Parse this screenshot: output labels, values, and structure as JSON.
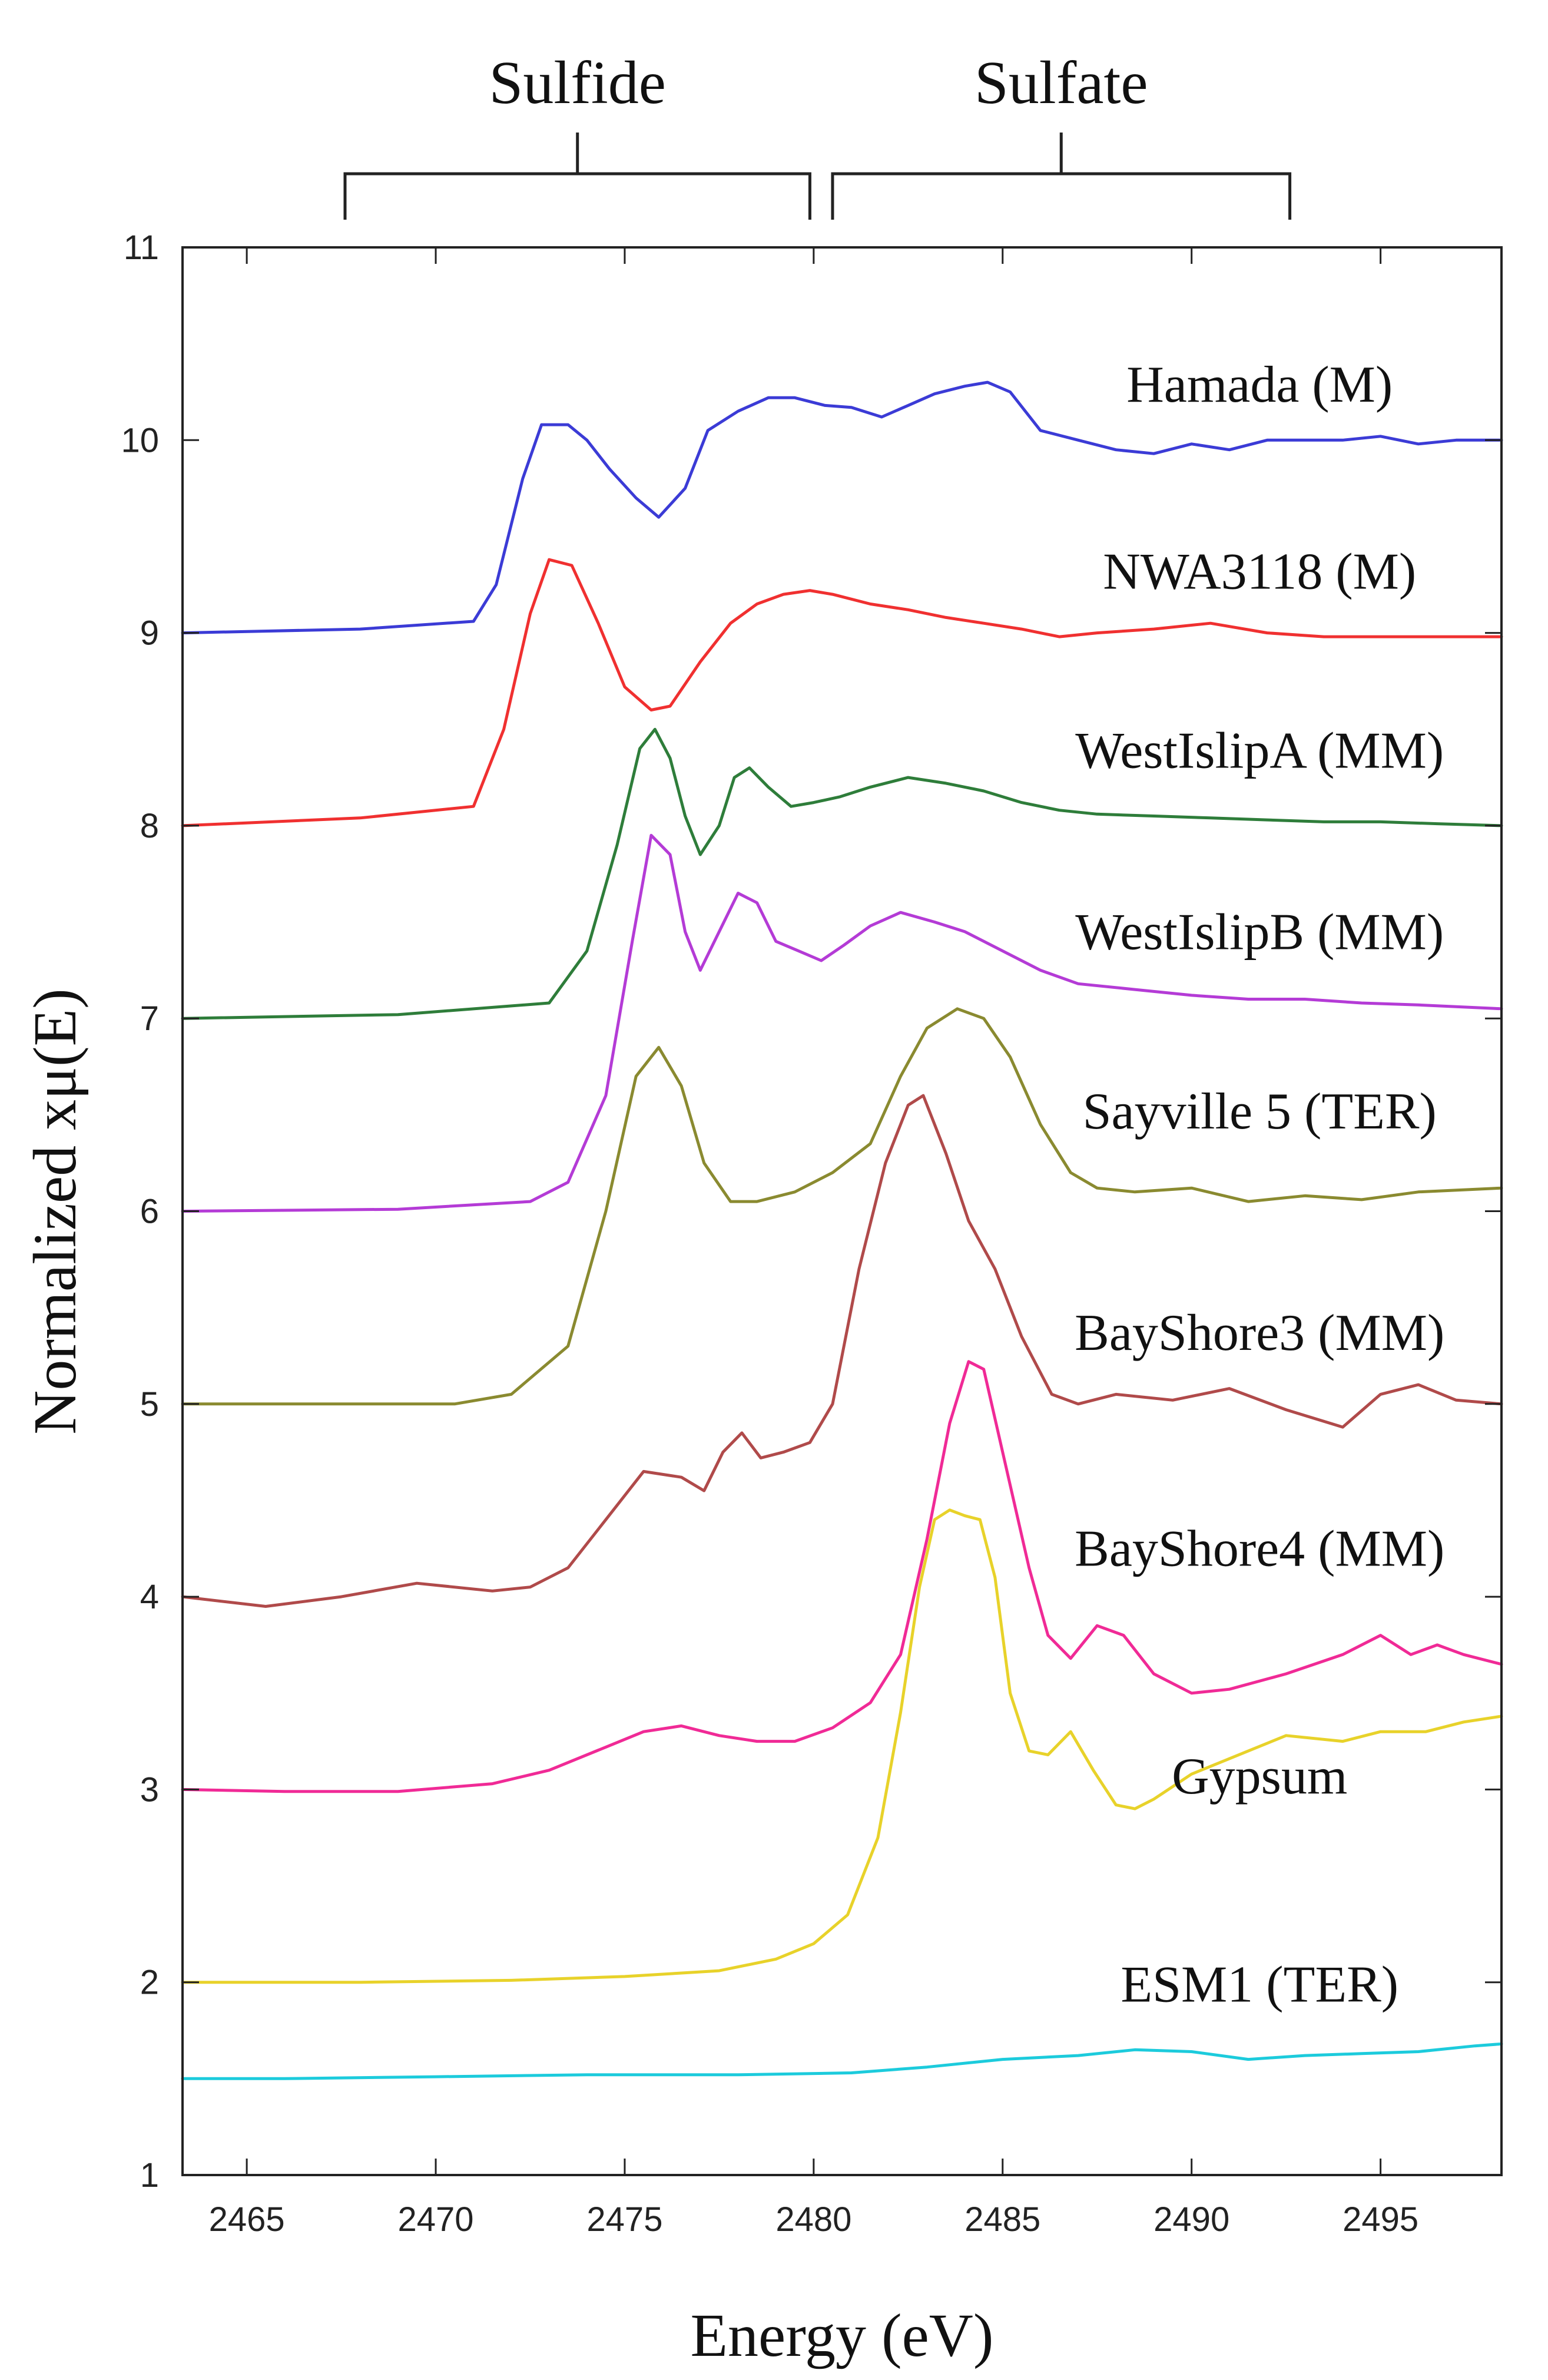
{
  "chart_data": {
    "type": "line",
    "title": "",
    "xlabel": "Energy (eV)",
    "ylabel": "Normalized xμ(E)",
    "xlim": [
      2463.3,
      2498.2
    ],
    "ylim": [
      1,
      11
    ],
    "xticks": [
      2465,
      2470,
      2475,
      2480,
      2485,
      2490,
      2495
    ],
    "yticks": [
      1,
      2,
      3,
      4,
      5,
      6,
      7,
      8,
      9,
      10,
      11
    ],
    "grid": false,
    "legend": "none",
    "brackets": [
      {
        "label": "Sulfide",
        "x0": 2467.6,
        "x1": 2479.9
      },
      {
        "label": "Sulfate",
        "x0": 2480.5,
        "x1": 2492.6
      }
    ],
    "series": [
      {
        "name": "Hamada (M)",
        "color": "#3b3bd6",
        "x": [
          2463.3,
          2468,
          2471,
          2471.6,
          2472.3,
          2472.8,
          2473.5,
          2474,
          2474.6,
          2475.3,
          2475.9,
          2476.6,
          2477.2,
          2478,
          2478.8,
          2479.5,
          2480.3,
          2481,
          2481.8,
          2482.5,
          2483.2,
          2484,
          2484.6,
          2485.2,
          2486,
          2487,
          2488,
          2489,
          2490,
          2491,
          2492,
          2493,
          2494,
          2495,
          2496,
          2497,
          2498.2
        ],
        "y": [
          9.0,
          9.02,
          9.06,
          9.25,
          9.8,
          10.08,
          10.08,
          10.0,
          9.85,
          9.7,
          9.6,
          9.75,
          10.05,
          10.15,
          10.22,
          10.22,
          10.18,
          10.17,
          10.12,
          10.18,
          10.24,
          10.28,
          10.3,
          10.25,
          10.05,
          10.0,
          9.95,
          9.93,
          9.98,
          9.95,
          10.0,
          10.0,
          10.0,
          10.02,
          9.98,
          10.0,
          10.0
        ]
      },
      {
        "name": "NWA3118 (M)",
        "color": "#f03030",
        "x": [
          2463.3,
          2468,
          2471,
          2471.8,
          2472.5,
          2473,
          2473.6,
          2474.3,
          2475,
          2475.7,
          2476.2,
          2477,
          2477.8,
          2478.5,
          2479.2,
          2479.9,
          2480.5,
          2481.5,
          2482.5,
          2483.5,
          2484.5,
          2485.5,
          2486.5,
          2487.5,
          2489,
          2490.5,
          2492,
          2493.5,
          2495,
          2496.5,
          2498.2
        ],
        "y": [
          8.0,
          8.04,
          8.1,
          8.5,
          9.1,
          9.38,
          9.35,
          9.05,
          8.72,
          8.6,
          8.62,
          8.85,
          9.05,
          9.15,
          9.2,
          9.22,
          9.2,
          9.15,
          9.12,
          9.08,
          9.05,
          9.02,
          8.98,
          9.0,
          9.02,
          9.05,
          9.0,
          8.98,
          8.98,
          8.98,
          8.98
        ]
      },
      {
        "name": "WestIslipA (MM)",
        "color": "#2e7d3a",
        "x": [
          2463.3,
          2469,
          2473,
          2474,
          2474.8,
          2475.4,
          2475.8,
          2476.2,
          2476.6,
          2477,
          2477.5,
          2477.9,
          2478.3,
          2478.8,
          2479.4,
          2480,
          2480.7,
          2481.5,
          2482.5,
          2483.5,
          2484.5,
          2485.5,
          2486.5,
          2487.5,
          2489,
          2490.5,
          2492,
          2493.5,
          2495,
          2496.5,
          2498.2
        ],
        "y": [
          7.0,
          7.02,
          7.08,
          7.35,
          7.9,
          8.4,
          8.5,
          8.35,
          8.05,
          7.85,
          8.0,
          8.25,
          8.3,
          8.2,
          8.1,
          8.12,
          8.15,
          8.2,
          8.25,
          8.22,
          8.18,
          8.12,
          8.08,
          8.06,
          8.05,
          8.04,
          8.03,
          8.02,
          8.02,
          8.01,
          8.0
        ]
      },
      {
        "name": "WestIslipB (MM)",
        "color": "#b43bd6",
        "x": [
          2463.3,
          2469,
          2472.5,
          2473.5,
          2474.5,
          2475.2,
          2475.7,
          2476.2,
          2476.6,
          2477,
          2477.5,
          2478,
          2478.5,
          2479,
          2479.6,
          2480.2,
          2480.8,
          2481.5,
          2482.3,
          2483.2,
          2484,
          2485,
          2486,
          2487,
          2488.5,
          2490,
          2491.5,
          2493,
          2494.5,
          2496,
          2498.2
        ],
        "y": [
          6.0,
          6.01,
          6.05,
          6.15,
          6.6,
          7.4,
          7.95,
          7.85,
          7.45,
          7.25,
          7.45,
          7.65,
          7.6,
          7.4,
          7.35,
          7.3,
          7.38,
          7.48,
          7.55,
          7.5,
          7.45,
          7.35,
          7.25,
          7.18,
          7.15,
          7.12,
          7.1,
          7.1,
          7.08,
          7.07,
          7.05
        ]
      },
      {
        "name": "Sayville 5 (TER)",
        "color": "#8a8a30",
        "x": [
          2463.3,
          2468,
          2470.5,
          2472,
          2473.5,
          2474.5,
          2475.3,
          2475.9,
          2476.5,
          2477.1,
          2477.8,
          2478.5,
          2479.5,
          2480.5,
          2481.5,
          2482.3,
          2483,
          2483.8,
          2484.5,
          2485.2,
          2486,
          2486.8,
          2487.5,
          2488.5,
          2490,
          2491.5,
          2493,
          2494.5,
          2496,
          2498.2
        ],
        "y": [
          5.0,
          5.0,
          5.0,
          5.05,
          5.3,
          6.0,
          6.7,
          6.85,
          6.65,
          6.25,
          6.05,
          6.05,
          6.1,
          6.2,
          6.35,
          6.7,
          6.95,
          7.05,
          7.0,
          6.8,
          6.45,
          6.2,
          6.12,
          6.1,
          6.12,
          6.05,
          6.08,
          6.06,
          6.1,
          6.12
        ]
      },
      {
        "name": "BayShore3 (MM)",
        "color": "#b04a4a",
        "x": [
          2463.3,
          2465.5,
          2467.5,
          2469.5,
          2471.5,
          2472.5,
          2473.5,
          2474.5,
          2475.5,
          2476.5,
          2477.1,
          2477.6,
          2478.1,
          2478.6,
          2479.2,
          2479.9,
          2480.5,
          2481.2,
          2481.9,
          2482.5,
          2482.9,
          2483.5,
          2484.1,
          2484.8,
          2485.5,
          2486.3,
          2487,
          2488,
          2489.5,
          2491,
          2492.5,
          2494,
          2495,
          2496,
          2497,
          2498.2
        ],
        "y": [
          4.0,
          3.95,
          4.0,
          4.07,
          4.03,
          4.05,
          4.15,
          4.4,
          4.65,
          4.62,
          4.55,
          4.75,
          4.85,
          4.72,
          4.75,
          4.8,
          5.0,
          5.7,
          6.25,
          6.55,
          6.6,
          6.3,
          5.95,
          5.7,
          5.35,
          5.05,
          5.0,
          5.05,
          5.02,
          5.08,
          4.97,
          4.88,
          5.05,
          5.1,
          5.02,
          5.0
        ]
      },
      {
        "name": "BayShore4 (MM)",
        "color": "#f02a96",
        "x": [
          2463.3,
          2466,
          2469,
          2471.5,
          2473,
          2474.5,
          2475.5,
          2476.5,
          2477.5,
          2478.5,
          2479.5,
          2480.5,
          2481.5,
          2482.3,
          2483,
          2483.6,
          2484.1,
          2484.5,
          2485,
          2485.7,
          2486.2,
          2486.8,
          2487.5,
          2488.2,
          2489,
          2490,
          2491,
          2492.5,
          2494,
          2495,
          2495.8,
          2496.5,
          2497.2,
          2498.2
        ],
        "y": [
          3.0,
          2.99,
          2.99,
          3.03,
          3.1,
          3.22,
          3.3,
          3.33,
          3.28,
          3.25,
          3.25,
          3.32,
          3.45,
          3.7,
          4.3,
          4.9,
          5.22,
          5.18,
          4.75,
          4.15,
          3.8,
          3.68,
          3.85,
          3.8,
          3.6,
          3.5,
          3.52,
          3.6,
          3.7,
          3.8,
          3.7,
          3.75,
          3.7,
          3.65
        ]
      },
      {
        "name": "Gypsum",
        "color": "#e8d22a",
        "x": [
          2463.3,
          2468,
          2472,
          2475,
          2477.5,
          2479,
          2480,
          2480.9,
          2481.7,
          2482.3,
          2482.8,
          2483.2,
          2483.6,
          2484,
          2484.4,
          2484.8,
          2485.2,
          2485.7,
          2486.2,
          2486.8,
          2487.4,
          2488,
          2488.5,
          2489,
          2490,
          2491.5,
          2492.5,
          2494,
          2495,
          2496.2,
          2497.2,
          2498.2
        ],
        "y": [
          2.0,
          2.0,
          2.01,
          2.03,
          2.06,
          2.12,
          2.2,
          2.35,
          2.75,
          3.4,
          4.05,
          4.4,
          4.45,
          4.42,
          4.4,
          4.1,
          3.5,
          3.2,
          3.18,
          3.3,
          3.1,
          2.92,
          2.9,
          2.95,
          3.08,
          3.2,
          3.28,
          3.25,
          3.3,
          3.3,
          3.35,
          3.38
        ]
      },
      {
        "name": "ESM1 (TER)",
        "color": "#1ccbdc",
        "x": [
          2463.3,
          2466,
          2470,
          2474,
          2478,
          2481,
          2483,
          2485,
          2487,
          2488.5,
          2490,
          2491.5,
          2493,
          2494.5,
          2496,
          2497.5,
          2498.2
        ],
        "y": [
          1.5,
          1.5,
          1.51,
          1.52,
          1.52,
          1.53,
          1.56,
          1.6,
          1.62,
          1.65,
          1.64,
          1.6,
          1.62,
          1.63,
          1.64,
          1.67,
          1.68
        ]
      }
    ],
    "annotations": [
      {
        "text": "Hamada (M)",
        "x": 2491.8,
        "y": 10.2
      },
      {
        "text": "NWA3118 (M)",
        "x": 2491.8,
        "y": 9.23
      },
      {
        "text": "WestIslipA (MM)",
        "x": 2491.8,
        "y": 8.3
      },
      {
        "text": "WestIslipB (MM)",
        "x": 2491.8,
        "y": 7.36
      },
      {
        "text": "Sayville 5 (TER)",
        "x": 2491.8,
        "y": 6.43
      },
      {
        "text": "BayShore3 (MM)",
        "x": 2491.8,
        "y": 5.28
      },
      {
        "text": "BayShore4 (MM)",
        "x": 2491.8,
        "y": 4.16
      },
      {
        "text": "Gypsum",
        "x": 2491.8,
        "y": 2.98
      },
      {
        "text": "ESM1 (TER)",
        "x": 2491.8,
        "y": 1.9
      }
    ]
  }
}
